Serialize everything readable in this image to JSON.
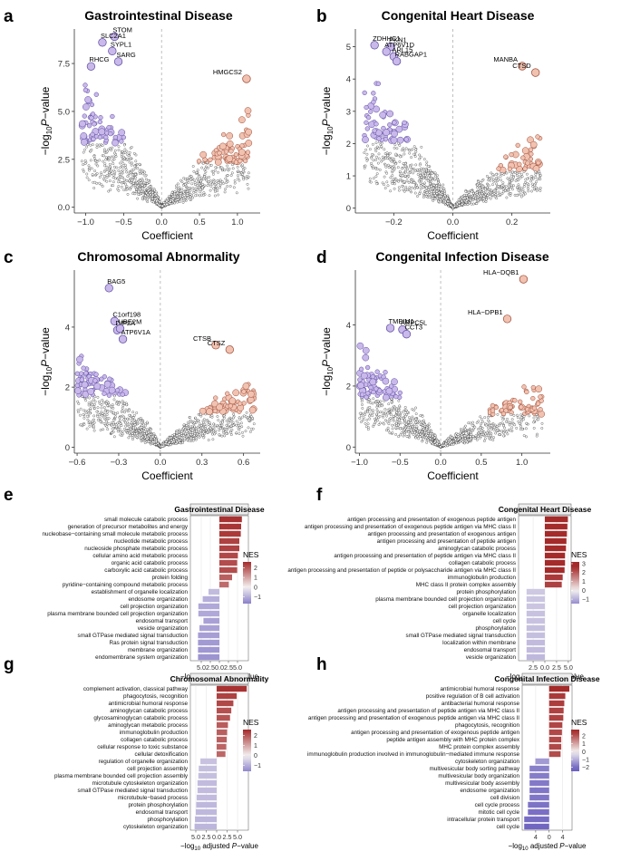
{
  "figure": {
    "colors": {
      "down_fill": "#c9b8ea",
      "down_stroke": "#5a4aa0",
      "up_fill": "#f2c2b1",
      "up_stroke": "#9a4a35",
      "neutral_stroke": "#2a2a2a",
      "nes_high": "#a52a2a",
      "nes_mid": "#f4f0f0",
      "nes_low": "#6a5fbf",
      "grid": "#e6e6e6"
    }
  },
  "chart_data": [
    {
      "panel": "a",
      "type": "scatter",
      "title": "Gastrointestinal Disease",
      "xlabel": "Coefficient",
      "ylabel_prefix": "−log",
      "ylabel_sub": "10",
      "ylabel_p": "P",
      "ylabel_suffix": "−value",
      "xlim": [
        -1.15,
        1.3
      ],
      "ylim": [
        -0.3,
        9.3
      ],
      "xticks": [
        -1.0,
        -0.5,
        0.0,
        0.5,
        1.0
      ],
      "xtick_labels": [
        "−1.0",
        "−0.5",
        "0.0",
        "0.5",
        "1.0"
      ],
      "yticks": [
        0.0,
        2.5,
        5.0,
        7.5
      ],
      "ytick_labels": [
        "0.0",
        "2.5",
        "5.0",
        "7.5"
      ],
      "shape": {
        "left_max": 1.05,
        "right_max": 1.15,
        "left_peak": 7.3,
        "right_peak": 5.2,
        "n": 1150,
        "seed": 11
      },
      "highlights": [
        {
          "label": "STOM",
          "x": -0.62,
          "y": 8.9,
          "dir": "down"
        },
        {
          "label": "SLC2A1",
          "x": -0.78,
          "y": 8.6,
          "dir": "down"
        },
        {
          "label": "SYPL1",
          "x": -0.65,
          "y": 8.15,
          "dir": "down"
        },
        {
          "label": "SARG",
          "x": -0.57,
          "y": 7.6,
          "dir": "down"
        },
        {
          "label": "RHCG",
          "x": -0.93,
          "y": 7.35,
          "dir": "down"
        },
        {
          "label": "HMGCS2",
          "x": 1.12,
          "y": 6.7,
          "dir": "up"
        }
      ]
    },
    {
      "panel": "b",
      "type": "scatter",
      "title": "Congenital Heart Disease",
      "xlabel": "Coefficient",
      "ylabel_prefix": "−log",
      "ylabel_sub": "10",
      "ylabel_p": "P",
      "ylabel_suffix": "−value",
      "xlim": [
        -0.33,
        0.33
      ],
      "ylim": [
        -0.15,
        5.55
      ],
      "xticks": [
        -0.2,
        0.0,
        0.2
      ],
      "xtick_labels": [
        "−0.2",
        "0.0",
        "0.2"
      ],
      "yticks": [
        0,
        1,
        2,
        3,
        4,
        5
      ],
      "ytick_labels": [
        "0",
        "1",
        "2",
        "3",
        "4",
        "5"
      ],
      "shape": {
        "left_max": 0.3,
        "right_max": 0.3,
        "left_peak": 4.6,
        "right_peak": 2.6,
        "n": 1250,
        "seed": 23
      },
      "highlights": [
        {
          "label": "ZDHHC1",
          "x": -0.265,
          "y": 5.05,
          "dir": "down"
        },
        {
          "label": "PKN1",
          "x": -0.21,
          "y": 5.0,
          "dir": "down"
        },
        {
          "label": "ATP6V1D",
          "x": -0.225,
          "y": 4.85,
          "dir": "down"
        },
        {
          "label": "ARL15",
          "x": -0.2,
          "y": 4.7,
          "dir": "down"
        },
        {
          "label": "RABGAP1",
          "x": -0.19,
          "y": 4.55,
          "dir": "down"
        },
        {
          "label": "MANBA",
          "x": 0.235,
          "y": 4.4,
          "dir": "up"
        },
        {
          "label": "CTSD",
          "x": 0.28,
          "y": 4.2,
          "dir": "up"
        }
      ]
    },
    {
      "panel": "c",
      "type": "scatter",
      "title": "Chromosomal Abnormality",
      "xlabel": "Coefficient",
      "ylabel_prefix": "−log",
      "ylabel_sub": "10",
      "ylabel_p": "P",
      "ylabel_suffix": "−value",
      "xlim": [
        -0.62,
        0.72
      ],
      "ylim": [
        -0.2,
        5.9
      ],
      "xticks": [
        -0.6,
        -0.3,
        0.0,
        0.3,
        0.6
      ],
      "xtick_labels": [
        "−0.6",
        "−0.3",
        "0.0",
        "0.3",
        "0.6"
      ],
      "yticks": [
        0,
        2,
        4
      ],
      "ytick_labels": [
        "0",
        "2",
        "4"
      ],
      "shape": {
        "left_max": 0.6,
        "right_max": 0.68,
        "left_peak": 3.8,
        "right_peak": 2.6,
        "n": 1250,
        "seed": 37
      },
      "highlights": [
        {
          "label": "BAG5",
          "x": -0.37,
          "y": 5.3,
          "dir": "down"
        },
        {
          "label": "C1orf198",
          "x": -0.33,
          "y": 4.2,
          "dir": "down"
        },
        {
          "label": "DIP2A",
          "x": -0.31,
          "y": 3.9,
          "dir": "down"
        },
        {
          "label": "UBE2M",
          "x": -0.29,
          "y": 3.95,
          "dir": "down"
        },
        {
          "label": "ATP6V1A",
          "x": -0.27,
          "y": 3.6,
          "dir": "down"
        },
        {
          "label": "CTSB",
          "x": 0.4,
          "y": 3.4,
          "dir": "up"
        },
        {
          "label": "CTSZ",
          "x": 0.5,
          "y": 3.25,
          "dir": "up"
        }
      ]
    },
    {
      "panel": "d",
      "type": "scatter",
      "title": "Congenital Infection Disease",
      "xlabel": "Coefficient",
      "ylabel_prefix": "−log",
      "ylabel_sub": "10",
      "ylabel_p": "P",
      "ylabel_suffix": "−value",
      "xlim": [
        -1.05,
        1.35
      ],
      "ylim": [
        -0.2,
        5.8
      ],
      "xticks": [
        -1.0,
        -0.5,
        0.0,
        0.5,
        1.0
      ],
      "xtick_labels": [
        "−1.0",
        "−0.5",
        "0.0",
        "0.5",
        "1.0"
      ],
      "yticks": [
        0,
        2,
        4
      ],
      "ytick_labels": [
        "0",
        "2",
        "4"
      ],
      "shape": {
        "left_max": 1.0,
        "right_max": 1.25,
        "left_peak": 3.6,
        "right_peak": 2.4,
        "n": 1150,
        "seed": 51
      },
      "highlights": [
        {
          "label": "HLA−DQB1",
          "x": 1.02,
          "y": 5.5,
          "dir": "up"
        },
        {
          "label": "HLA−DPB1",
          "x": 0.82,
          "y": 4.2,
          "dir": "up"
        },
        {
          "label": "TMBIM1",
          "x": -0.62,
          "y": 3.9,
          "dir": "down"
        },
        {
          "label": "ARPC5L",
          "x": -0.47,
          "y": 3.85,
          "dir": "down"
        },
        {
          "label": "CCT3",
          "x": -0.42,
          "y": 3.7,
          "dir": "down"
        }
      ]
    },
    {
      "panel": "e",
      "type": "bar",
      "title": "Gastrointestinal Disease",
      "xlabel_prefix": "−log",
      "xlabel_sub": "10",
      "xlabel_mid": " adjusted ",
      "xlabel_p": "P",
      "xlabel_suffix": "−value",
      "xlim": [
        -8.0,
        8.0
      ],
      "xticks": [
        -5.0,
        -2.5,
        0.0,
        2.5,
        5.0
      ],
      "xtick_labels": [
        "5.0",
        "2.5",
        "0.0",
        "2.5",
        "5.0"
      ],
      "legend_title": "NES",
      "nes_range": [
        -1.7,
        2.6
      ],
      "nes_ticks": [
        2,
        1,
        0,
        -1
      ],
      "nes_tick_labels": [
        "2",
        "1",
        "0",
        "−1"
      ],
      "categories": [
        "small molecule catabolic process",
        "generation of precursor metabolites and energy",
        "nucleobase−containing small molecule metabolic process",
        "nucleotide metabolic process",
        "nucleoside phosphate metabolic process",
        "cellular amino acid metabolic process",
        "organic acid catabolic process",
        "carboxylic acid catabolic process",
        "protein folding",
        "pyridine−containing compound metabolic process",
        "establishment of organelle localization",
        "endosome organization",
        "cell projection organization",
        "plasma membrane bounded cell projection organization",
        "endosomal transport",
        "vesicle organization",
        "small GTPase mediated signal transduction",
        "Ras protein signal transduction",
        "membrane organization",
        "endomembrane system organization"
      ],
      "values": [
        6.2,
        6.0,
        5.9,
        5.5,
        5.5,
        5.1,
        4.9,
        4.9,
        3.5,
        2.6,
        -3.0,
        -4.6,
        -5.8,
        -5.8,
        -4.4,
        -5.5,
        -5.9,
        -5.9,
        -5.9,
        -5.9
      ],
      "nes": [
        2.5,
        2.45,
        2.4,
        2.3,
        2.3,
        2.2,
        2.15,
        2.15,
        1.9,
        1.75,
        -0.8,
        -1.0,
        -1.1,
        -1.1,
        -1.2,
        -1.2,
        -1.25,
        -1.3,
        -1.35,
        -1.4
      ]
    },
    {
      "panel": "f",
      "type": "bar",
      "title": "Congenital Heart Disease",
      "xlabel_prefix": "−log",
      "xlabel_sub": "10",
      "xlabel_mid": " adjusted ",
      "xlabel_p": "P",
      "xlabel_suffix": "−value",
      "xlim": [
        -5.6,
        5.6
      ],
      "xticks": [
        -2.5,
        0.0,
        2.5,
        5.0
      ],
      "xtick_labels": [
        "2.5",
        "0.0",
        "2.5",
        "5.0"
      ],
      "legend_title": "NES",
      "nes_range": [
        -1.5,
        3.2
      ],
      "nes_ticks": [
        3,
        2,
        1,
        0,
        -1
      ],
      "nes_tick_labels": [
        "3",
        "2",
        "1",
        "0",
        "−1"
      ],
      "categories": [
        "antigen processing and presentation of exogenous peptide antigen",
        "antigen processing and presentation of exogenous peptide antigen via MHC class II",
        "antigen processing and presentation of exogenous antigen",
        "antigen processing and presentation of peptide antigen",
        "aminoglycan catabolic process",
        "antigen processing and presentation of peptide antigen via MHC class II",
        "collagen catabolic process",
        "antigen processing and presentation of peptide or polysaccharide antigen via MHC class II",
        "immunoglobulin production",
        "MHC class II protein complex assembly",
        "protein phosphorylation",
        "plasma membrane bounded cell projection organization",
        "cell projection organization",
        "organelle localization",
        "cell cycle",
        "phosphorylation",
        "small GTPase mediated signal transduction",
        "localization within membrane",
        "endosomal transport",
        "vesicle organization"
      ],
      "values": [
        4.9,
        4.8,
        4.7,
        4.6,
        4.5,
        4.3,
        4.3,
        4.2,
        3.8,
        3.6,
        -3.9,
        -3.9,
        -3.9,
        -3.9,
        -3.9,
        -3.9,
        -3.9,
        -3.9,
        -3.9,
        -3.9
      ],
      "nes": [
        3.0,
        2.95,
        2.9,
        2.85,
        2.8,
        2.7,
        2.7,
        2.6,
        2.4,
        2.3,
        -0.6,
        -0.65,
        -0.65,
        -0.7,
        -0.7,
        -0.75,
        -0.75,
        -0.8,
        -0.8,
        -0.85
      ]
    },
    {
      "panel": "g",
      "type": "bar",
      "title": "Chromosomal Abnormality",
      "xlabel_prefix": "−log",
      "xlabel_sub": "10",
      "xlabel_mid": " adjusted ",
      "xlabel_p": "P",
      "xlabel_suffix": "−value",
      "xlim": [
        -6.3,
        7.6
      ],
      "xticks": [
        -5.0,
        -2.5,
        0.0,
        2.5,
        5.0
      ],
      "xtick_labels": [
        "5.0",
        "2.5",
        "0.0",
        "2.5",
        "5.0"
      ],
      "legend_title": "NES",
      "nes_range": [
        -1.6,
        2.6
      ],
      "nes_ticks": [
        2,
        1,
        0,
        -1
      ],
      "nes_tick_labels": [
        "2",
        "1",
        "0",
        "−1"
      ],
      "categories": [
        "complement activation, classical pathway",
        "phagocytosis, recognition",
        "antimicrobial humoral response",
        "aminoglycan catabolic process",
        "glycosaminoglycan catabolic process",
        "aminoglycan metabolic process",
        "immunoglobulin production",
        "collagen catabolic process",
        "cellular response to toxic substance",
        "cellular detoxification",
        "regulation of organelle organization",
        "cell projection assembly",
        "plasma membrane bounded cell projection assembly",
        "microtubule cytoskeleton organization",
        "small GTPase mediated signal transduction",
        "microtubule−based process",
        "protein phosphorylation",
        "endosomal transport",
        "phosphorylation",
        "cytoskeleton organization"
      ],
      "values": [
        7.2,
        4.8,
        4.0,
        3.5,
        3.2,
        2.7,
        2.5,
        2.4,
        2.3,
        2.1,
        -3.9,
        -4.3,
        -4.4,
        -4.6,
        -4.6,
        -4.8,
        -4.9,
        -5.0,
        -5.2,
        -5.3
      ],
      "nes": [
        2.5,
        2.3,
        2.2,
        2.1,
        2.05,
        1.95,
        1.9,
        1.9,
        1.85,
        1.8,
        -0.7,
        -0.75,
        -0.75,
        -0.8,
        -0.8,
        -0.8,
        -0.85,
        -0.85,
        -0.9,
        -0.9
      ]
    },
    {
      "panel": "h",
      "type": "bar",
      "title": "Congenital Infection Disease",
      "xlabel_prefix": "−log",
      "xlabel_sub": "10",
      "xlabel_mid": " adjusted ",
      "xlabel_p": "P",
      "xlabel_suffix": "−value",
      "xlim": [
        -8.0,
        6.8
      ],
      "xticks": [
        -4,
        0,
        4
      ],
      "xtick_labels": [
        "4",
        "0",
        "4"
      ],
      "legend_title": "NES",
      "nes_range": [
        -2.5,
        2.8
      ],
      "nes_ticks": [
        2,
        1,
        0,
        -1,
        -2
      ],
      "nes_tick_labels": [
        "2",
        "1",
        "0",
        "−1",
        "−2"
      ],
      "categories": [
        "antimicrobial humoral response",
        "positive regulation of B cell activation",
        "antibacterial humoral response",
        "antigen processing and presentation of peptide antigen via MHC class II",
        "antigen processing and presentation of exogenous peptide antigen via MHC class II",
        "phagocytosis, recognition",
        "antigen processing and presentation of exogenous peptide antigen",
        "peptide antigen assembly with MHC protein complex",
        "MHC protein complex assembly",
        "immunoglobulin production involved in immunoglobulin−mediated immune response",
        "cytoskeleton organization",
        "multivesicular body sorting pathway",
        "multivesicular body organization",
        "multivesicular body assembly",
        "endosome organization",
        "cell division",
        "cell cycle process",
        "mitotic cell cycle",
        "intracellular protein transport",
        "cell cycle"
      ],
      "values": [
        6.0,
        4.8,
        4.5,
        4.3,
        4.2,
        3.9,
        3.8,
        3.6,
        3.6,
        3.4,
        -4.1,
        -5.8,
        -5.8,
        -5.8,
        -5.8,
        -5.8,
        -6.3,
        -6.3,
        -7.4,
        -7.4
      ],
      "nes": [
        2.6,
        2.4,
        2.35,
        2.3,
        2.3,
        2.25,
        2.2,
        2.2,
        2.2,
        2.15,
        -1.3,
        -1.7,
        -1.75,
        -1.8,
        -1.85,
        -1.85,
        -1.9,
        -1.95,
        -2.0,
        -2.1
      ]
    }
  ]
}
